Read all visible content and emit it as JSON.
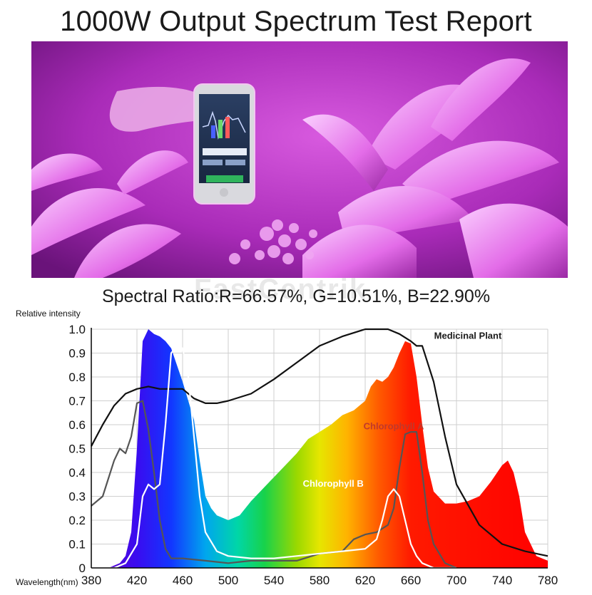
{
  "header": {
    "title": "1000W Output Spectrum Test Report"
  },
  "photo": {
    "description_icon": "phone-spectrometer-photo",
    "colors": {
      "bg": "#b62cc4",
      "flower": "#e873ee"
    }
  },
  "ratio": {
    "text": "Spectral Ratio:R=66.57%, G=10.51%, B=22.90%"
  },
  "watermark": {
    "text": "FastCentrik"
  },
  "chart_data": {
    "type": "area",
    "ylabel": "Relative intensity",
    "xlabel": "Wavelength(nm)",
    "xlim": [
      380,
      780
    ],
    "ylim": [
      0,
      1.0
    ],
    "x_ticks": [
      "380",
      "420",
      "460",
      "500",
      "540",
      "580",
      "620",
      "660",
      "700",
      "740",
      "780"
    ],
    "y_ticks": [
      "0",
      "0.1",
      "0.2",
      "0.3",
      "0.4",
      "0.5",
      "0.6",
      "0.7",
      "0.8",
      "0.9",
      "1.0"
    ],
    "grid": true,
    "annotations": [
      {
        "text": "Medicinal Plant",
        "x": 710,
        "y": 0.96,
        "color": "#1a1a1a"
      },
      {
        "text": "Chlorophyll A",
        "x": 645,
        "y": 0.58,
        "color": "#c0392b"
      },
      {
        "text": "Chlorophyll B",
        "x": 592,
        "y": 0.34,
        "color": "#ffffff"
      }
    ],
    "series": [
      {
        "role": "spectrum",
        "x": [
          380,
          395,
          405,
          410,
          415,
          420,
          425,
          430,
          435,
          440,
          445,
          450,
          455,
          460,
          465,
          470,
          475,
          480,
          485,
          490,
          495,
          500,
          510,
          520,
          540,
          560,
          570,
          580,
          590,
          600,
          610,
          620,
          625,
          630,
          635,
          640,
          645,
          650,
          655,
          660,
          665,
          670,
          675,
          680,
          690,
          700,
          710,
          720,
          730,
          740,
          745,
          750,
          755,
          760,
          770,
          780
        ],
        "values": [
          0,
          0,
          0.02,
          0.05,
          0.15,
          0.5,
          0.95,
          1.0,
          0.98,
          0.97,
          0.95,
          0.92,
          0.85,
          0.78,
          0.7,
          0.62,
          0.45,
          0.3,
          0.25,
          0.22,
          0.21,
          0.2,
          0.22,
          0.28,
          0.38,
          0.48,
          0.54,
          0.57,
          0.6,
          0.64,
          0.66,
          0.7,
          0.76,
          0.79,
          0.78,
          0.8,
          0.84,
          0.9,
          0.95,
          0.94,
          0.8,
          0.6,
          0.42,
          0.32,
          0.27,
          0.27,
          0.28,
          0.3,
          0.36,
          0.43,
          0.45,
          0.4,
          0.3,
          0.15,
          0.05,
          0.03
        ]
      },
      {
        "name": "Medicinal Plant",
        "x": [
          380,
          390,
          400,
          410,
          420,
          430,
          440,
          460,
          470,
          480,
          490,
          500,
          520,
          540,
          560,
          580,
          600,
          620,
          640,
          650,
          660,
          665,
          670,
          680,
          690,
          700,
          720,
          740,
          760,
          780
        ],
        "values": [
          0.51,
          0.6,
          0.68,
          0.73,
          0.75,
          0.76,
          0.75,
          0.75,
          0.71,
          0.69,
          0.69,
          0.7,
          0.73,
          0.79,
          0.86,
          0.93,
          0.97,
          1.0,
          1.0,
          0.98,
          0.95,
          0.93,
          0.93,
          0.78,
          0.55,
          0.35,
          0.18,
          0.1,
          0.07,
          0.05
        ]
      },
      {
        "name": "Chlorophyll A",
        "x": [
          380,
          390,
          400,
          405,
          410,
          415,
          420,
          425,
          430,
          435,
          440,
          445,
          450,
          460,
          480,
          500,
          520,
          560,
          580,
          600,
          610,
          620,
          630,
          640,
          645,
          650,
          655,
          660,
          665,
          670,
          675,
          680,
          690,
          700
        ],
        "values": [
          0.26,
          0.3,
          0.45,
          0.5,
          0.48,
          0.55,
          0.69,
          0.7,
          0.58,
          0.4,
          0.2,
          0.08,
          0.04,
          0.04,
          0.03,
          0.02,
          0.03,
          0.03,
          0.06,
          0.07,
          0.12,
          0.14,
          0.15,
          0.18,
          0.25,
          0.42,
          0.56,
          0.57,
          0.57,
          0.4,
          0.2,
          0.1,
          0.02,
          0.0
        ]
      },
      {
        "name": "Chlorophyll B",
        "x": [
          380,
          400,
          410,
          420,
          425,
          430,
          435,
          440,
          445,
          450,
          455,
          460,
          465,
          470,
          475,
          480,
          490,
          500,
          520,
          540,
          560,
          580,
          600,
          620,
          630,
          635,
          640,
          645,
          650,
          655,
          660,
          665,
          670,
          680,
          700
        ],
        "values": [
          0,
          0,
          0.02,
          0.1,
          0.3,
          0.35,
          0.33,
          0.35,
          0.6,
          0.9,
          0.93,
          0.92,
          0.8,
          0.55,
          0.3,
          0.15,
          0.07,
          0.05,
          0.04,
          0.04,
          0.05,
          0.06,
          0.07,
          0.08,
          0.12,
          0.2,
          0.3,
          0.33,
          0.3,
          0.2,
          0.1,
          0.05,
          0.02,
          0.0,
          0.0
        ]
      }
    ]
  }
}
